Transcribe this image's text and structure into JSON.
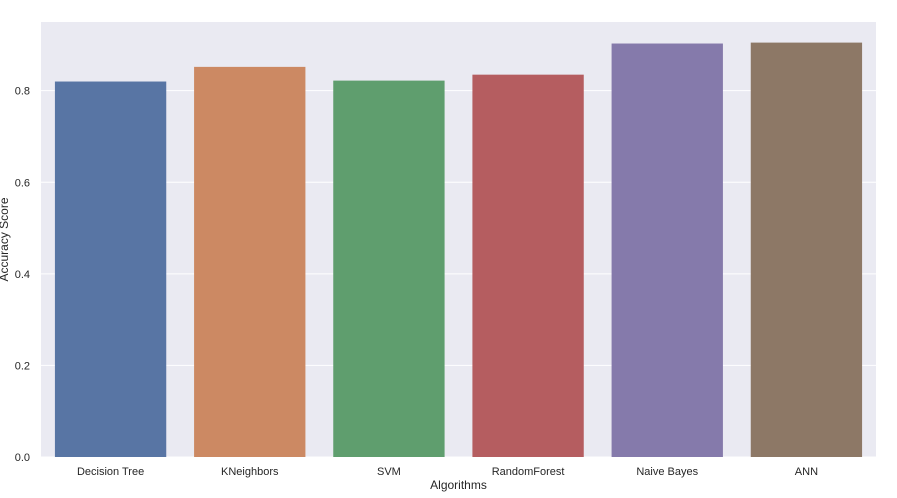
{
  "chart_data": {
    "type": "bar",
    "categories": [
      "Decision Tree",
      "KNeighbors",
      "SVM",
      "RandomForest",
      "Naive Bayes",
      "ANN"
    ],
    "values": [
      0.82,
      0.852,
      0.822,
      0.835,
      0.903,
      0.905
    ],
    "colors": [
      "#5875a4",
      "#cc8963",
      "#5f9e6e",
      "#b55d60",
      "#857aab",
      "#8d7866"
    ],
    "xlabel": "Algorithms",
    "ylabel": "Accuracy Score",
    "ylim": [
      0,
      0.95
    ],
    "yticks": [
      0.0,
      0.2,
      0.4,
      0.6,
      0.8
    ],
    "ytick_labels": [
      "0.0",
      "0.2",
      "0.4",
      "0.6",
      "0.8"
    ],
    "grid": true,
    "background": "#eaeaf2",
    "grid_color": "#ffffff"
  }
}
